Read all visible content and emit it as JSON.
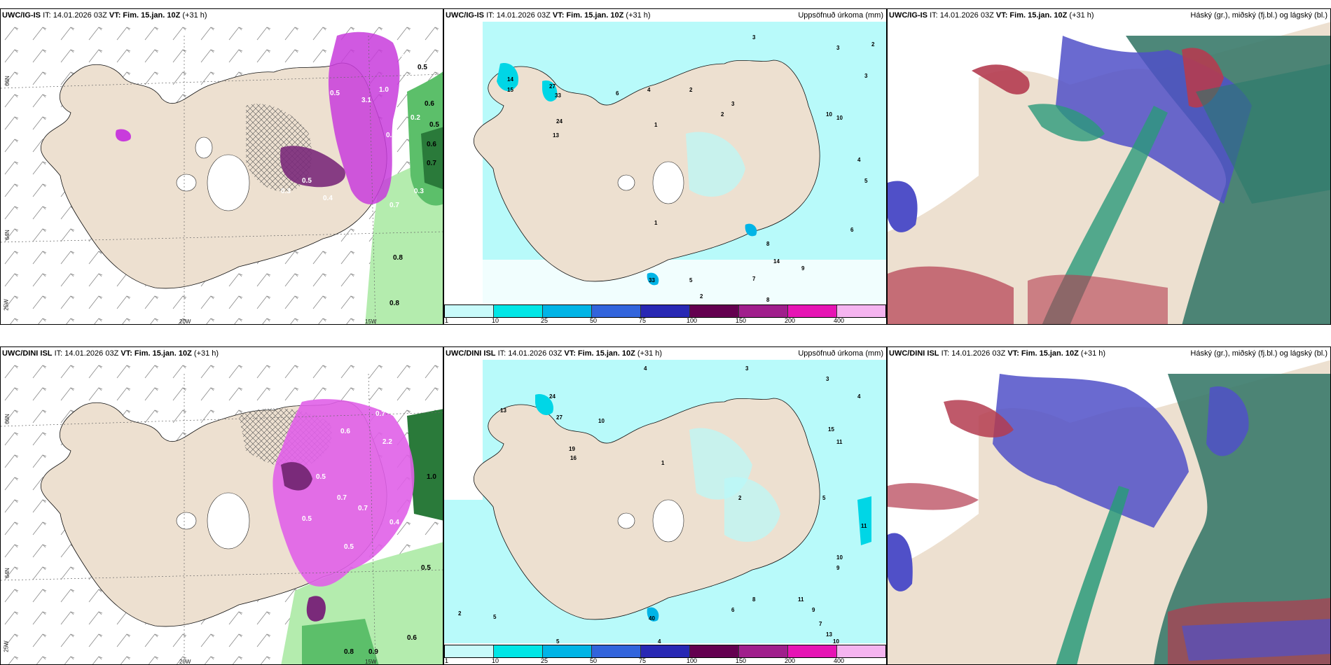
{
  "issue_time": "IT: 14.01.2026 03Z",
  "valid_time": "VT: Fim. 15.jan. 10Z",
  "lead": "(+31 h)",
  "panels": {
    "p1": {
      "model": "UWC/IG-IS",
      "right_title": ""
    },
    "p2": {
      "model": "UWC/IG-IS",
      "right_title": "Uppsöfnuð úrkoma (mm)"
    },
    "p3": {
      "model": "UWC/IG-IS",
      "right_title": "Háský (gr.), miðský (fj.bl.) og lágský (bl.)"
    },
    "p4": {
      "model": "UWC/DINI ISL",
      "right_title": ""
    },
    "p5": {
      "model": "UWC/DINI ISL",
      "right_title": "Uppsöfnuð úrkoma (mm)"
    },
    "p6": {
      "model": "UWC/DINI ISL",
      "right_title": "Háský (gr.), miðský (fj.bl.) og lágský (bl.)"
    }
  },
  "axis_labels": {
    "lat66": "66N",
    "lat64": "64N",
    "lon25": "25W",
    "lon20": "20W",
    "lon15": "15W"
  },
  "colorbar": {
    "ticks": [
      "1",
      "10",
      "25",
      "50",
      "75",
      "100",
      "150",
      "200",
      "400"
    ],
    "colors": [
      "#c8fafa",
      "#00e6e6",
      "#00b4e6",
      "#3264dc",
      "#2828b4",
      "#640050",
      "#a01e8c",
      "#e614b4",
      "#f5b4f0"
    ]
  },
  "colors": {
    "land": "#ede0d0",
    "sea_precip": "#b8fafa",
    "snow_purple": "#c83cdc",
    "dark_purple": "#7a2a7a",
    "rain_green": "#a8e6a0",
    "cloud_high": "#2a9a7a",
    "cloud_mid": "#5050c8",
    "cloud_low": "#b43c50"
  },
  "p1_labels": [
    "0.4",
    "0.5",
    "0.5",
    "0.6",
    "0.5",
    "3.1",
    "1.0",
    "0.2",
    "0.5",
    "0.6",
    "0.7",
    "0.3",
    "0.7",
    "0.8",
    "0.8",
    "0.3",
    "0.4",
    "0.9"
  ],
  "p4_labels": [
    "0.7",
    "0.6",
    "2.2",
    "1.0",
    "0.5",
    "0.7",
    "0.7",
    "0.5",
    "0.4",
    "0.6",
    "0.5",
    "0.6",
    "0.5",
    "0.8",
    "0.9",
    "0.6"
  ],
  "p2_labels": [
    "3",
    "2",
    "3",
    "3",
    "14",
    "15",
    "27",
    "33",
    "24",
    "13",
    "6",
    "4",
    "2",
    "1",
    "3",
    "2",
    "1",
    "10",
    "10",
    "4",
    "5",
    "6",
    "14",
    "9",
    "7",
    "8",
    "33",
    "5",
    "2",
    "8"
  ],
  "p5_labels": [
    "4",
    "3",
    "3",
    "4",
    "24",
    "27",
    "13",
    "10",
    "19",
    "16",
    "1",
    "2",
    "5",
    "15",
    "11",
    "11",
    "10",
    "9",
    "7",
    "11",
    "9",
    "13",
    "10",
    "40",
    "5",
    "2",
    "5",
    "8",
    "6",
    "4"
  ]
}
